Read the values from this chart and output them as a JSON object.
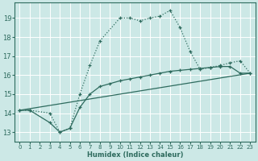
{
  "xlabel": "Humidex (Indice chaleur)",
  "bg_color": "#cce8e6",
  "grid_color": "#ffffff",
  "line_color": "#2e6b5e",
  "xlim": [
    -0.5,
    23.5
  ],
  "ylim": [
    12.5,
    19.8
  ],
  "xticks": [
    0,
    1,
    2,
    3,
    4,
    5,
    6,
    7,
    8,
    9,
    10,
    11,
    12,
    13,
    14,
    15,
    16,
    17,
    18,
    19,
    20,
    21,
    22,
    23
  ],
  "yticks": [
    13,
    14,
    15,
    16,
    17,
    18,
    19
  ],
  "line1_x": [
    0,
    1,
    3,
    4,
    5,
    6,
    7,
    8,
    10,
    11,
    12,
    13,
    14,
    15,
    16,
    17,
    18,
    19,
    20,
    21,
    22,
    23
  ],
  "line1_y": [
    14.15,
    14.15,
    14.0,
    13.0,
    13.2,
    15.0,
    16.5,
    17.8,
    19.0,
    19.0,
    18.85,
    19.0,
    19.1,
    19.4,
    18.5,
    17.25,
    16.3,
    16.4,
    16.5,
    16.65,
    16.75,
    16.1
  ],
  "line2_x": [
    0,
    1,
    3,
    4,
    5,
    6,
    7,
    8,
    9,
    10,
    11,
    12,
    13,
    14,
    15,
    16,
    17,
    18,
    19,
    20,
    21,
    22,
    23
  ],
  "line2_y": [
    14.15,
    14.15,
    13.5,
    13.0,
    13.2,
    14.3,
    15.0,
    15.4,
    15.55,
    15.7,
    15.8,
    15.9,
    16.0,
    16.1,
    16.2,
    16.25,
    16.3,
    16.35,
    16.4,
    16.45,
    16.45,
    16.1,
    16.1
  ],
  "line3_x": [
    0,
    23
  ],
  "line3_y": [
    14.15,
    16.1
  ]
}
